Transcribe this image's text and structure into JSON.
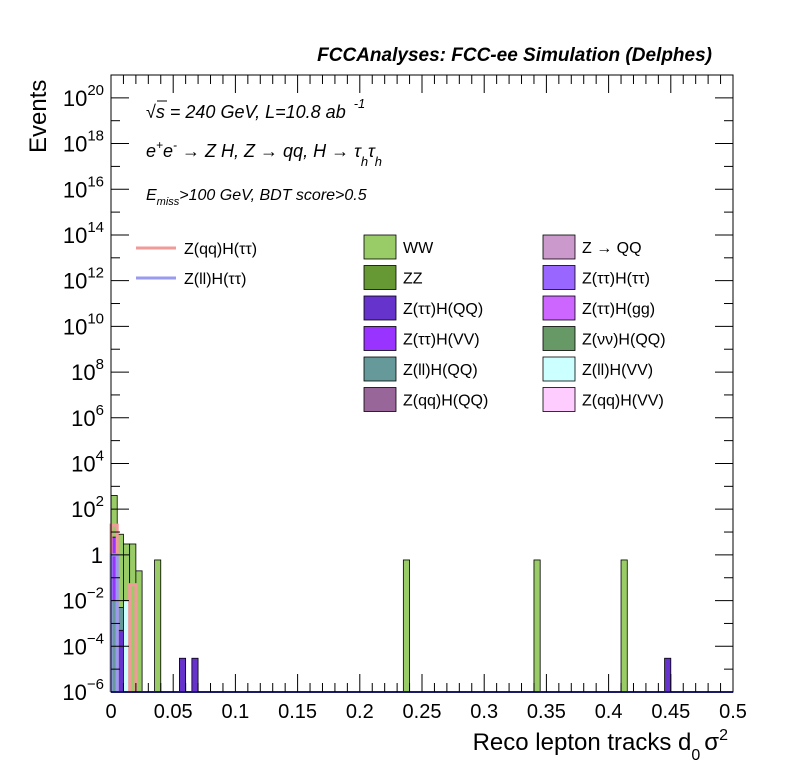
{
  "chart_data": {
    "type": "bar",
    "title": "FCCAnalyses: FCC-ee Simulation (Delphes)",
    "xlabel": "Reco lepton tracks d",
    "xlabel_sub": "0",
    "xlabel_tail": "σ",
    "xlabel_sup": "2",
    "ylabel": "Events",
    "xlim": [
      0,
      0.5
    ],
    "ylim": [
      1e-06,
      1e+21
    ],
    "log_y": true,
    "bin_width": 0.005,
    "x_ticks": [
      "0",
      "0.05",
      "0.1",
      "0.15",
      "0.2",
      "0.25",
      "0.3",
      "0.35",
      "0.4",
      "0.45",
      "0.5"
    ],
    "y_ticks": [
      {
        "base": "10",
        "exp": "−6"
      },
      {
        "base": "10",
        "exp": "−4"
      },
      {
        "base": "10",
        "exp": "−2"
      },
      {
        "base": "1",
        "exp": ""
      },
      {
        "base": "10",
        "exp": "2"
      },
      {
        "base": "10",
        "exp": "4"
      },
      {
        "base": "10",
        "exp": "6"
      },
      {
        "base": "10",
        "exp": "8"
      },
      {
        "base": "10",
        "exp": "10"
      },
      {
        "base": "10",
        "exp": "12"
      },
      {
        "base": "10",
        "exp": "14"
      },
      {
        "base": "10",
        "exp": "16"
      },
      {
        "base": "10",
        "exp": "18"
      },
      {
        "base": "10",
        "exp": "20"
      }
    ],
    "annotations": {
      "energy_sqrt": "√",
      "energy_s": "s",
      "energy_rest": " = 240 GeV, L=10.8 ab",
      "energy_sup": "-1",
      "process_e": "e",
      "process_plus": "+",
      "process_e2": "e",
      "process_minus": "-",
      "process_a": " → Z H, Z  → qq, H  → τ",
      "process_sub1": "h",
      "process_tau2": "τ",
      "process_sub2": "h",
      "cut_e": "E",
      "cut_sub": "miss",
      "cut_rest": ">100 GeV, BDT score>0.5"
    },
    "legend_lines": [
      {
        "name": "Z(qq)H(ττ)",
        "color": "#f19a9a"
      },
      {
        "name": "Z(ll)H(ττ)",
        "color": "#9a9af1"
      }
    ],
    "legend_boxes": [
      {
        "name": "WW",
        "color": "#99cc66"
      },
      {
        "name": "Z → QQ",
        "color": "#cc99cc"
      },
      {
        "name": "ZZ",
        "color": "#669933"
      },
      {
        "name": "Z(ττ)H(ττ)",
        "color": "#9966ff"
      },
      {
        "name": "Z(ττ)H(QQ)",
        "color": "#6633cc"
      },
      {
        "name": "Z(ττ)H(gg)",
        "color": "#cc66ff"
      },
      {
        "name": "Z(ττ)H(VV)",
        "color": "#9933ff"
      },
      {
        "name": "Z(νν)H(QQ)",
        "color": "#669966"
      },
      {
        "name": "Z(ll)H(QQ)",
        "color": "#669999"
      },
      {
        "name": "Z(ll)H(VV)",
        "color": "#ccffff"
      },
      {
        "name": "Z(qq)H(QQ)",
        "color": "#996699"
      },
      {
        "name": "Z(qq)H(VV)",
        "color": "#ffccff"
      }
    ],
    "stacked_bars": [
      {
        "x": 0.0,
        "total": 400,
        "color": "#99cc66"
      },
      {
        "x": 0.0,
        "total": 6,
        "color": "#9933ff"
      },
      {
        "x": 0.0,
        "total": 0.01,
        "color": "#669999"
      },
      {
        "x": 0.005,
        "total": 8,
        "color": "#99cc66"
      },
      {
        "x": 0.005,
        "total": 0.005,
        "color": "#669999"
      },
      {
        "x": 0.005,
        "total": 0.0005,
        "color": "#6633cc"
      },
      {
        "x": 0.01,
        "total": 3,
        "color": "#99cc66"
      },
      {
        "x": 0.01,
        "total": 0.01,
        "color": "#ccffff"
      },
      {
        "x": 0.015,
        "total": 3,
        "color": "#99cc66"
      },
      {
        "x": 0.02,
        "total": 0.2,
        "color": "#99cc66"
      },
      {
        "x": 0.035,
        "total": 0.6,
        "color": "#99cc66"
      },
      {
        "x": 0.055,
        "total": 3e-05,
        "color": "#6633cc"
      },
      {
        "x": 0.065,
        "total": 3e-05,
        "color": "#6633cc"
      },
      {
        "x": 0.235,
        "total": 0.6,
        "color": "#99cc66"
      },
      {
        "x": 0.34,
        "total": 0.6,
        "color": "#99cc66"
      },
      {
        "x": 0.41,
        "total": 0.6,
        "color": "#99cc66"
      },
      {
        "x": 0.445,
        "total": 3e-05,
        "color": "#6633cc"
      }
    ],
    "signal_lines": [
      {
        "name": "Z(qq)H(ττ)",
        "color": "#f19a9a",
        "bins": [
          {
            "x": 0.0,
            "value": 20
          },
          {
            "x": 0.015,
            "value": 0.05
          }
        ]
      },
      {
        "name": "Z(ll)H(ττ)",
        "color": "#9a9af1",
        "bins": [
          {
            "x": 0.0,
            "value": 1
          }
        ]
      }
    ]
  }
}
